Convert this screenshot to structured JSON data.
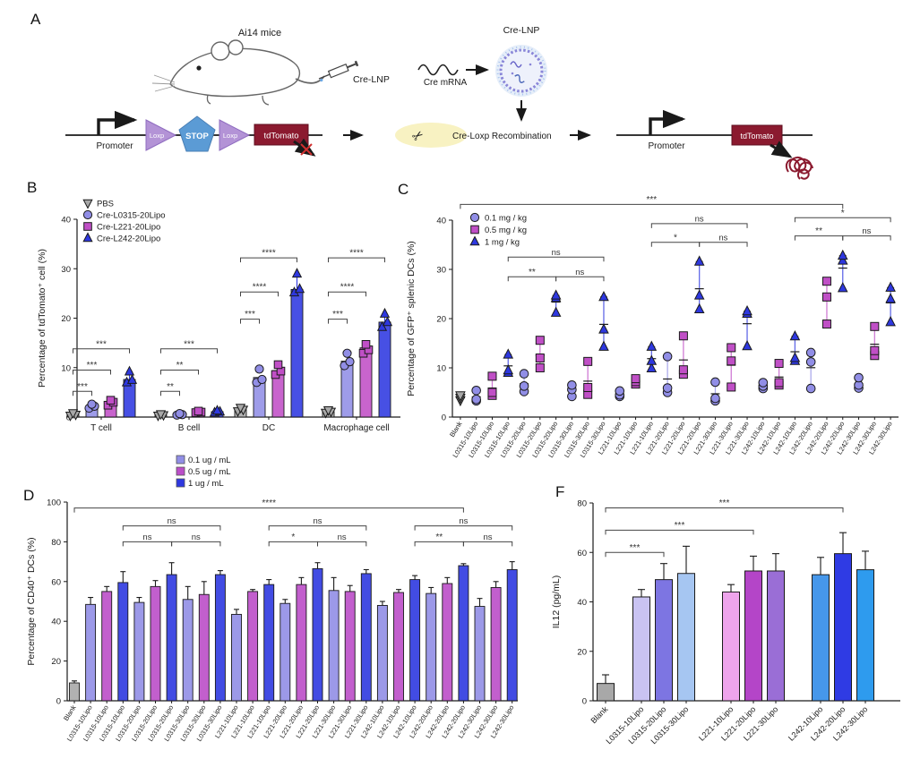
{
  "panel_labels": {
    "a": "A",
    "b": "B",
    "c": "C",
    "d": "D",
    "f": "F"
  },
  "panels": {
    "a": {
      "mouse_title": "Ai14 mice",
      "injection_label": "Cre-LNP",
      "mrna_label": "Cre mRNA",
      "lnp_title": "Cre-LNP",
      "recombination_label": "Cre-Loxp Recombination",
      "promoter1": "Promoter",
      "loxp1": "Loxp",
      "stop": "STOP",
      "loxp2": "Loxp",
      "tdtomato1": "tdTomato",
      "promoter2": "Promoter",
      "tdtomato2": "tdTomato"
    }
  },
  "colors": {
    "dose_low": "#918ee6",
    "dose_mid": "#c04fc6",
    "dose_high": "#2e38e0",
    "blank_gray": "#a8a8a8",
    "tdtomato_red": "#8b1a2f",
    "loxp_purple": "#b393d6",
    "stop_blue": "#5b9bd5",
    "scissor_bg": "#f8f2c2"
  },
  "chart_data": [
    {
      "id": "B",
      "type": "bar-scatter",
      "ylabel": "Percentage of tdTomato⁺ cell (%)",
      "ylim": [
        0,
        40
      ],
      "yticks": [
        0,
        10,
        20,
        30,
        40
      ],
      "categories": [
        "T cell",
        "B cell",
        "DC",
        "Macrophage cell"
      ],
      "series": [
        {
          "name": "PBS",
          "symbol": "triangle-down",
          "color": "#a8a8a8",
          "bars": [
            0.5,
            0.4,
            1.5,
            1.1
          ],
          "points": [
            [
              0.3,
              0.5,
              0.8
            ],
            [
              0.3,
              0.4,
              0.6
            ],
            [
              1.2,
              1.5,
              1.9
            ],
            [
              0.9,
              1.1,
              1.4
            ]
          ]
        },
        {
          "name": "Cre-L0315-20Lipo",
          "symbol": "circle",
          "color": "#918ee6",
          "bars": [
            2.1,
            0.55,
            8.0,
            11.3
          ],
          "points": [
            [
              1.8,
              2.2,
              2.6
            ],
            [
              0.4,
              0.5,
              0.7
            ],
            [
              7.0,
              7.6,
              9.7
            ],
            [
              10.4,
              11.2,
              12.9
            ]
          ]
        },
        {
          "name": "Cre-L221-20Lipo",
          "symbol": "square",
          "color": "#c04fc6",
          "bars": [
            2.9,
            1.0,
            9.4,
            14.0
          ],
          "points": [
            [
              2.4,
              3.0,
              3.4
            ],
            [
              0.9,
              1.0,
              1.2
            ],
            [
              8.6,
              9.3,
              10.6
            ],
            [
              12.9,
              13.6,
              14.7
            ]
          ]
        },
        {
          "name": "Cre-L242-20Lipo",
          "symbol": "triangle-up",
          "color": "#2e38e0",
          "bars": [
            7.6,
            1.1,
            25.8,
            19.2
          ],
          "errors": [
            1.6,
            0.3,
            2.6,
            1.6
          ],
          "points": [
            [
              7.0,
              7.5,
              9.2
            ],
            [
              0.9,
              1.1,
              1.3
            ],
            [
              25.2,
              25.9,
              29.0
            ],
            [
              18.2,
              19.2,
              20.9
            ]
          ]
        }
      ],
      "brackets": [
        {
          "group": 0,
          "from": 0,
          "to": 1,
          "label": "***",
          "y": 5.2
        },
        {
          "group": 0,
          "from": 0,
          "to": 2,
          "label": "***",
          "y": 9.5
        },
        {
          "group": 0,
          "from": 0,
          "to": 3,
          "label": "***",
          "y": 13.8
        },
        {
          "group": 1,
          "from": 0,
          "to": 1,
          "label": "**",
          "y": 5.2
        },
        {
          "group": 1,
          "from": 0,
          "to": 2,
          "label": "**",
          "y": 9.5
        },
        {
          "group": 1,
          "from": 0,
          "to": 3,
          "label": "***",
          "y": 13.8
        },
        {
          "group": 2,
          "from": 0,
          "to": 1,
          "label": "***",
          "y": 19.8
        },
        {
          "group": 2,
          "from": 0,
          "to": 2,
          "label": "****",
          "y": 25.3
        },
        {
          "group": 2,
          "from": 0,
          "to": 3,
          "label": "****",
          "y": 32.2
        },
        {
          "group": 3,
          "from": 0,
          "to": 1,
          "label": "***",
          "y": 19.8
        },
        {
          "group": 3,
          "from": 0,
          "to": 2,
          "label": "****",
          "y": 25.3
        },
        {
          "group": 3,
          "from": 0,
          "to": 3,
          "label": "****",
          "y": 32.2
        }
      ]
    },
    {
      "id": "C",
      "type": "scatter-columns",
      "ylabel": "Percentage of GFP⁺ splenic DCs (%)",
      "ylim": [
        0,
        40
      ],
      "yticks": [
        0,
        10,
        20,
        30,
        40
      ],
      "legend": [
        {
          "name": "0.1 mg / kg",
          "symbol": "circle",
          "color": "#918ee6"
        },
        {
          "name": "0.5 mg / kg",
          "symbol": "square",
          "color": "#c04fc6"
        },
        {
          "name": "1 mg / kg",
          "symbol": "triangle-up",
          "color": "#2e38e0"
        }
      ],
      "columns": [
        {
          "label": "Blank",
          "dose": -1,
          "points": [
            3.4,
            3.9,
            4.4
          ]
        },
        {
          "label": "L0315-10Lipo",
          "dose": 0,
          "points": [
            3.3,
            3.6,
            5.4
          ]
        },
        {
          "label": "L0315-10Lipo",
          "dose": 1,
          "points": [
            4.4,
            5.0,
            8.3
          ]
        },
        {
          "label": "L0315-10Lipo",
          "dose": 2,
          "points": [
            9.0,
            9.5,
            12.7
          ]
        },
        {
          "label": "L0315-20Lipo",
          "dose": 0,
          "points": [
            5.2,
            6.3,
            8.8
          ]
        },
        {
          "label": "L0315-20Lipo",
          "dose": 1,
          "points": [
            10.0,
            12.0,
            15.6
          ]
        },
        {
          "label": "L0315-20Lipo",
          "dose": 2,
          "points": [
            21.2,
            24.2,
            24.7
          ]
        },
        {
          "label": "L0315-30Lipo",
          "dose": 0,
          "points": [
            4.2,
            5.6,
            6.5
          ]
        },
        {
          "label": "L0315-30Lipo",
          "dose": 1,
          "points": [
            4.6,
            6.0,
            11.3
          ]
        },
        {
          "label": "L0315-30Lipo",
          "dose": 2,
          "points": [
            14.3,
            17.8,
            24.4
          ]
        },
        {
          "label": "L221-10Lipo",
          "dose": 0,
          "points": [
            4.2,
            4.5,
            5.3
          ]
        },
        {
          "label": "L221-10Lipo",
          "dose": 1,
          "points": [
            6.7,
            7.2,
            7.8
          ]
        },
        {
          "label": "L221-10Lipo",
          "dose": 2,
          "points": [
            9.9,
            11.4,
            14.3
          ]
        },
        {
          "label": "L221-20Lipo",
          "dose": 0,
          "points": [
            5.0,
            5.9,
            12.3
          ]
        },
        {
          "label": "L221-20Lipo",
          "dose": 1,
          "points": [
            8.7,
            9.6,
            16.5
          ]
        },
        {
          "label": "L221-20Lipo",
          "dose": 2,
          "points": [
            21.9,
            24.7,
            31.6
          ]
        },
        {
          "label": "L221-30Lipo",
          "dose": 0,
          "points": [
            3.3,
            3.8,
            7.1
          ]
        },
        {
          "label": "L221-30Lipo",
          "dose": 1,
          "points": [
            6.1,
            11.4,
            14.1
          ]
        },
        {
          "label": "L221-30Lipo",
          "dose": 2,
          "points": [
            14.4,
            21.0,
            21.5
          ]
        },
        {
          "label": "L242-10Lipo",
          "dose": 0,
          "points": [
            5.8,
            6.3,
            7.0
          ]
        },
        {
          "label": "L242-10Lipo",
          "dose": 1,
          "points": [
            6.5,
            7.0,
            10.9
          ]
        },
        {
          "label": "L242-10Lipo",
          "dose": 2,
          "points": [
            11.4,
            12.0,
            16.4
          ]
        },
        {
          "label": "L242-20Lipo",
          "dose": 0,
          "points": [
            5.8,
            11.2,
            13.1
          ]
        },
        {
          "label": "L242-20Lipo",
          "dose": 1,
          "points": [
            18.9,
            24.4,
            27.6
          ]
        },
        {
          "label": "L242-20Lipo",
          "dose": 2,
          "points": [
            26.2,
            31.8,
            32.8
          ]
        },
        {
          "label": "L242-30Lipo",
          "dose": 0,
          "points": [
            5.9,
            6.5,
            8.0
          ]
        },
        {
          "label": "L242-30Lipo",
          "dose": 1,
          "points": [
            12.5,
            13.5,
            18.4
          ]
        },
        {
          "label": "L242-30Lipo",
          "dose": 2,
          "points": [
            19.3,
            24.0,
            26.3
          ]
        }
      ],
      "brackets": [
        {
          "from": 0,
          "to": 24,
          "label": "***",
          "y": 43.2
        },
        {
          "from": 3,
          "to": 9,
          "label": "ns",
          "y": 32.5
        },
        {
          "from": 3,
          "to": 6,
          "label": "**",
          "y": 28.5
        },
        {
          "from": 6,
          "to": 9,
          "label": "ns",
          "y": 28.5
        },
        {
          "from": 12,
          "to": 18,
          "label": "ns",
          "y": 39.3
        },
        {
          "from": 12,
          "to": 15,
          "label": "*",
          "y": 35.5
        },
        {
          "from": 15,
          "to": 18,
          "label": "ns",
          "y": 35.5
        },
        {
          "from": 21,
          "to": 27,
          "label": "*",
          "y": 40.5
        },
        {
          "from": 21,
          "to": 24,
          "label": "**",
          "y": 36.8
        },
        {
          "from": 24,
          "to": 27,
          "label": "ns",
          "y": 36.8
        }
      ]
    },
    {
      "id": "D",
      "type": "bar",
      "ylabel": "Percentage of CD40⁺ DCs (%)",
      "ylim": [
        0,
        100
      ],
      "yticks": [
        0,
        20,
        40,
        60,
        80,
        100
      ],
      "legend": [
        {
          "name": "0.1 ug / mL",
          "color": "#918ee6"
        },
        {
          "name": "0.5 ug / mL",
          "color": "#bb4ec8"
        },
        {
          "name": "1 ug / mL",
          "color": "#2e38e0"
        }
      ],
      "columns": [
        {
          "label": "Blank",
          "dose": -1,
          "value": 9,
          "err": 1
        },
        {
          "label": "L0315-10Lipo",
          "dose": 0,
          "value": 48.5,
          "err": 3.5
        },
        {
          "label": "L0315-10Lipo",
          "dose": 1,
          "value": 55,
          "err": 2.5
        },
        {
          "label": "L0315-10Lipo",
          "dose": 2,
          "value": 59.5,
          "err": 5.5
        },
        {
          "label": "L0315-20Lipo",
          "dose": 0,
          "value": 49.5,
          "err": 2.5
        },
        {
          "label": "L0315-20Lipo",
          "dose": 1,
          "value": 57.5,
          "err": 3
        },
        {
          "label": "L0315-20Lipo",
          "dose": 2,
          "value": 63.5,
          "err": 6
        },
        {
          "label": "L0315-30Lipo",
          "dose": 0,
          "value": 51,
          "err": 6.5
        },
        {
          "label": "L0315-30Lipo",
          "dose": 1,
          "value": 53.5,
          "err": 6.5
        },
        {
          "label": "L0315-30Lipo",
          "dose": 2,
          "value": 63.5,
          "err": 2
        },
        {
          "label": "L221-10Lipo",
          "dose": 0,
          "value": 43.5,
          "err": 2.5
        },
        {
          "label": "L221-10Lipo",
          "dose": 1,
          "value": 55,
          "err": 1
        },
        {
          "label": "L221-10Lipo",
          "dose": 2,
          "value": 58.5,
          "err": 2.5
        },
        {
          "label": "L221-20Lipo",
          "dose": 0,
          "value": 49,
          "err": 2
        },
        {
          "label": "L221-20Lipo",
          "dose": 1,
          "value": 58.5,
          "err": 3.5
        },
        {
          "label": "L221-20Lipo",
          "dose": 2,
          "value": 66.5,
          "err": 3
        },
        {
          "label": "L221-30Lipo",
          "dose": 0,
          "value": 55.5,
          "err": 6.5
        },
        {
          "label": "L221-30Lipo",
          "dose": 1,
          "value": 55,
          "err": 3
        },
        {
          "label": "L221-30Lipo",
          "dose": 2,
          "value": 64,
          "err": 2
        },
        {
          "label": "L242-10Lipo",
          "dose": 0,
          "value": 48,
          "err": 2
        },
        {
          "label": "L242-10Lipo",
          "dose": 1,
          "value": 54.5,
          "err": 1.5
        },
        {
          "label": "L242-10Lipo",
          "dose": 2,
          "value": 61,
          "err": 2
        },
        {
          "label": "L242-20Lipo",
          "dose": 0,
          "value": 54,
          "err": 3
        },
        {
          "label": "L242-20Lipo",
          "dose": 1,
          "value": 59,
          "err": 3
        },
        {
          "label": "L242-20Lipo",
          "dose": 2,
          "value": 68,
          "err": 1
        },
        {
          "label": "L242-30Lipo",
          "dose": 0,
          "value": 47.5,
          "err": 4
        },
        {
          "label": "L242-30Lipo",
          "dose": 1,
          "value": 57,
          "err": 3
        },
        {
          "label": "L242-30Lipo",
          "dose": 2,
          "value": 66,
          "err": 4
        }
      ],
      "brackets": [
        {
          "from": 0,
          "to": 24,
          "label": "****",
          "y": 97
        },
        {
          "from": 3,
          "to": 9,
          "label": "ns",
          "y": 88
        },
        {
          "from": 3,
          "to": 6,
          "label": "ns",
          "y": 80
        },
        {
          "from": 6,
          "to": 9,
          "label": "ns",
          "y": 80
        },
        {
          "from": 12,
          "to": 18,
          "label": "ns",
          "y": 88
        },
        {
          "from": 12,
          "to": 15,
          "label": "*",
          "y": 80
        },
        {
          "from": 15,
          "to": 18,
          "label": "ns",
          "y": 80
        },
        {
          "from": 21,
          "to": 27,
          "label": "ns",
          "y": 88
        },
        {
          "from": 21,
          "to": 24,
          "label": "**",
          "y": 80
        },
        {
          "from": 24,
          "to": 27,
          "label": "ns",
          "y": 80
        }
      ]
    },
    {
      "id": "F",
      "type": "bar",
      "ylabel": "IL12 (pg/mL)",
      "ylim": [
        0,
        80
      ],
      "yticks": [
        0,
        20,
        40,
        60,
        80
      ],
      "columns": [
        {
          "label": "Blank",
          "value": 7,
          "err": 3.5,
          "color": "#a8a8a8"
        },
        {
          "label": "L0315-10Lipo",
          "value": 42,
          "err": 3,
          "color": "#c9c3f2"
        },
        {
          "label": "L0315-20Lipo",
          "value": 49,
          "err": 6.5,
          "color": "#7d75e2"
        },
        {
          "label": "L0315-30Lipo",
          "value": 51.5,
          "err": 11,
          "color": "#a6c6f2"
        },
        {
          "label": "L221-10Lipo",
          "value": 44,
          "err": 3,
          "color": "#eea4ec"
        },
        {
          "label": "L221-20Lipo",
          "value": 52.5,
          "err": 6,
          "color": "#b445c8"
        },
        {
          "label": "L221-30Lipo",
          "value": 52.5,
          "err": 7,
          "color": "#9a6ed6"
        },
        {
          "label": "L242-10Lipo",
          "value": 51,
          "err": 7,
          "color": "#4697ea"
        },
        {
          "label": "L242-20Lipo",
          "value": 59.5,
          "err": 8.5,
          "color": "#2f3be4"
        },
        {
          "label": "L242-30Lipo",
          "value": 53,
          "err": 7.5,
          "color": "#2e9bee"
        }
      ],
      "brackets": [
        {
          "from": 0,
          "to": 2,
          "label": "***",
          "y": 60
        },
        {
          "from": 0,
          "to": 5,
          "label": "***",
          "y": 69
        },
        {
          "from": 0,
          "to": 8,
          "label": "***",
          "y": 78
        }
      ]
    }
  ]
}
